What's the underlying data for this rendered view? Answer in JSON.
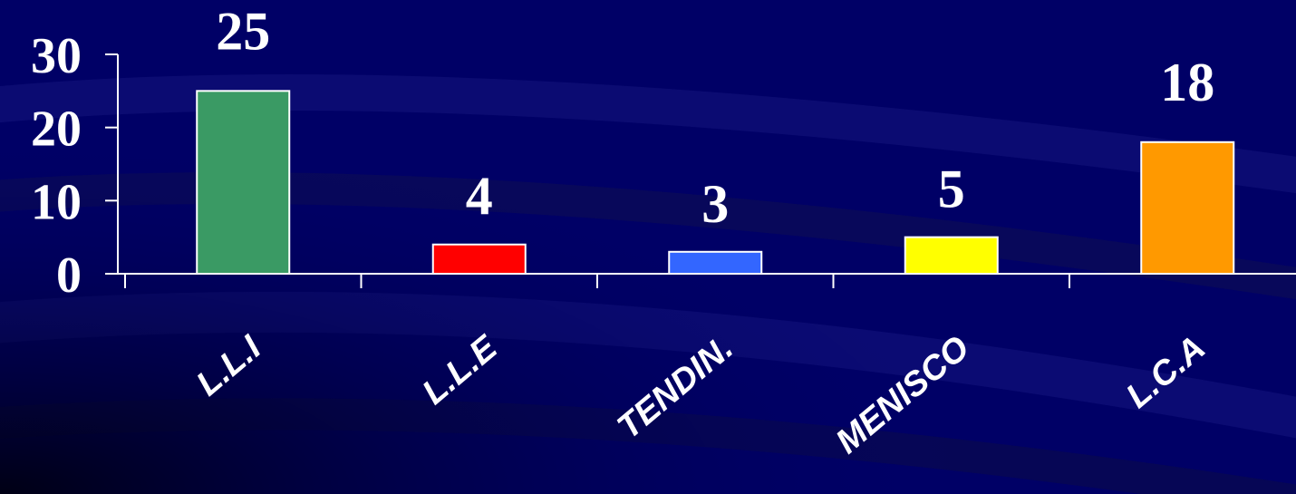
{
  "chart_data": {
    "type": "bar",
    "categories": [
      "L.L.I",
      "L.L.E",
      "TENDIN.",
      "MENISCO",
      "L.C.A"
    ],
    "values": [
      25,
      4,
      3,
      5,
      18
    ],
    "data_labels": [
      "25",
      "4",
      "3",
      "5",
      "18"
    ],
    "y_ticks": [
      "0",
      "10",
      "20",
      "30"
    ],
    "ylim": [
      0,
      30
    ],
    "colors": [
      "#3a9a64",
      "#ff0000",
      "#3366ff",
      "#ffff00",
      "#ff9900"
    ],
    "grid": false,
    "legend": "none"
  },
  "colors": {
    "background": "#000066",
    "axis": "#ffffff",
    "bar_outline": "#ffffff"
  }
}
